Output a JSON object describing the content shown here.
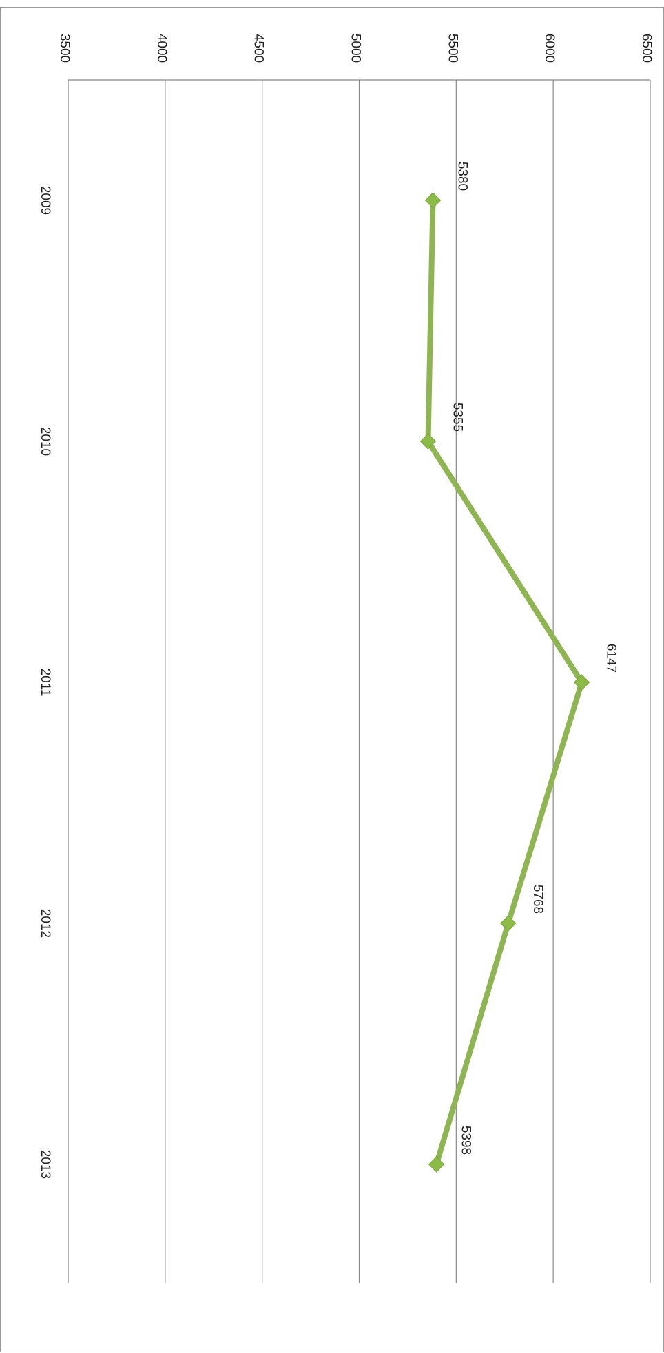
{
  "chart_data": {
    "type": "line",
    "title": "",
    "xlabel": "",
    "ylabel": "",
    "orientation": "rotated 90° clockwise",
    "categories": [
      "2009",
      "2010",
      "2011",
      "2012",
      "2013"
    ],
    "series": [
      {
        "values": [
          5380,
          5355,
          6147,
          5768,
          5398
        ]
      }
    ],
    "ylim": [
      3500,
      6500
    ],
    "yticks": [
      3500,
      4000,
      4500,
      5000,
      5500,
      6000,
      6500
    ],
    "data_labels": [
      "5380",
      "5355",
      "6147",
      "5768",
      "5398"
    ],
    "grid": true,
    "legend": "none",
    "marker": "diamond",
    "colors": {
      "series": "#8fb553",
      "marker": "#8dbb47",
      "grid": "#888888",
      "border": "#999999"
    }
  }
}
